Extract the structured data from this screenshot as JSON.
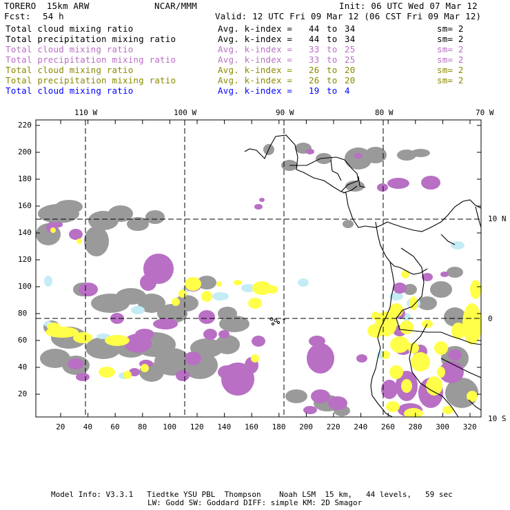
{
  "header": {
    "model": "TORERO  15km ARW",
    "org": "NCAR/MMM",
    "init": "Init: 06 UTC Wed 07 Mar 12",
    "fcst_label": "Fcst:",
    "fcst_value": "54 h",
    "valid": "Valid: 12 UTC Fri 09 Mar 12 (06 CST Fri 09 Mar 12)"
  },
  "legend": [
    {
      "field": "Total cloud mixing ratio",
      "kidx": "Avg. k-index =",
      "from": "44",
      "to": "34",
      "sm": "sm= 2",
      "color": "#000000"
    },
    {
      "field": "Total precipitation mixing ratio",
      "kidx": "Avg. k-index =",
      "from": "44",
      "to": "34",
      "sm": "sm= 2",
      "color": "#000000"
    },
    {
      "field": "Total cloud mixing ratio",
      "kidx": "Avg. k-index =",
      "from": "33",
      "to": "25",
      "sm": "sm= 2",
      "color": "#b86fc4"
    },
    {
      "field": "Total precipitation mixing ratio",
      "kidx": "Avg. k-index =",
      "from": "33",
      "to": "25",
      "sm": "sm= 2",
      "color": "#b86fc4"
    },
    {
      "field": "Total cloud mixing ratio",
      "kidx": "Avg. k-index =",
      "from": "26",
      "to": "20",
      "sm": "sm= 2",
      "color": "#8a8a00"
    },
    {
      "field": "Total precipitation mixing ratio",
      "kidx": "Avg. k-index =",
      "from": "26",
      "to": "20",
      "sm": "sm= 2",
      "color": "#8a8a00"
    },
    {
      "field": "Total cloud mixing ratio",
      "kidx": "Avg. k-index =",
      "from": "19",
      "to": "4",
      "sm": "",
      "color": "#0000ff"
    }
  ],
  "map": {
    "lon_labels": [
      "110 W",
      "100 W",
      "90 W",
      "80 W",
      "70 W"
    ],
    "lat_labels": [
      "10 N",
      "0",
      "10 S"
    ],
    "y_ticks": [
      "220",
      "200",
      "180",
      "160",
      "140",
      "120",
      "100",
      "80",
      "60",
      "40",
      "20"
    ],
    "x_ticks": [
      "20",
      "40",
      "60",
      "80",
      "100",
      "120",
      "140",
      "160",
      "180",
      "200",
      "220",
      "240",
      "260",
      "280",
      "300",
      "320"
    ],
    "colors": {
      "cloud_gray": "#9a9a9a",
      "precip_purple": "#b86fc4",
      "yellow": "#ffff4a",
      "light_blue": "#c4ecf6",
      "coast": "#000000"
    }
  },
  "footer": {
    "line1": "Model Info: V3.3.1   Tiedtke YSU PBL  Thompson    Noah LSM  15 km,   44 levels,   59 sec",
    "line2": "LW: Godd SW: Goddard DIFF: simple KM: 2D Smagor"
  }
}
